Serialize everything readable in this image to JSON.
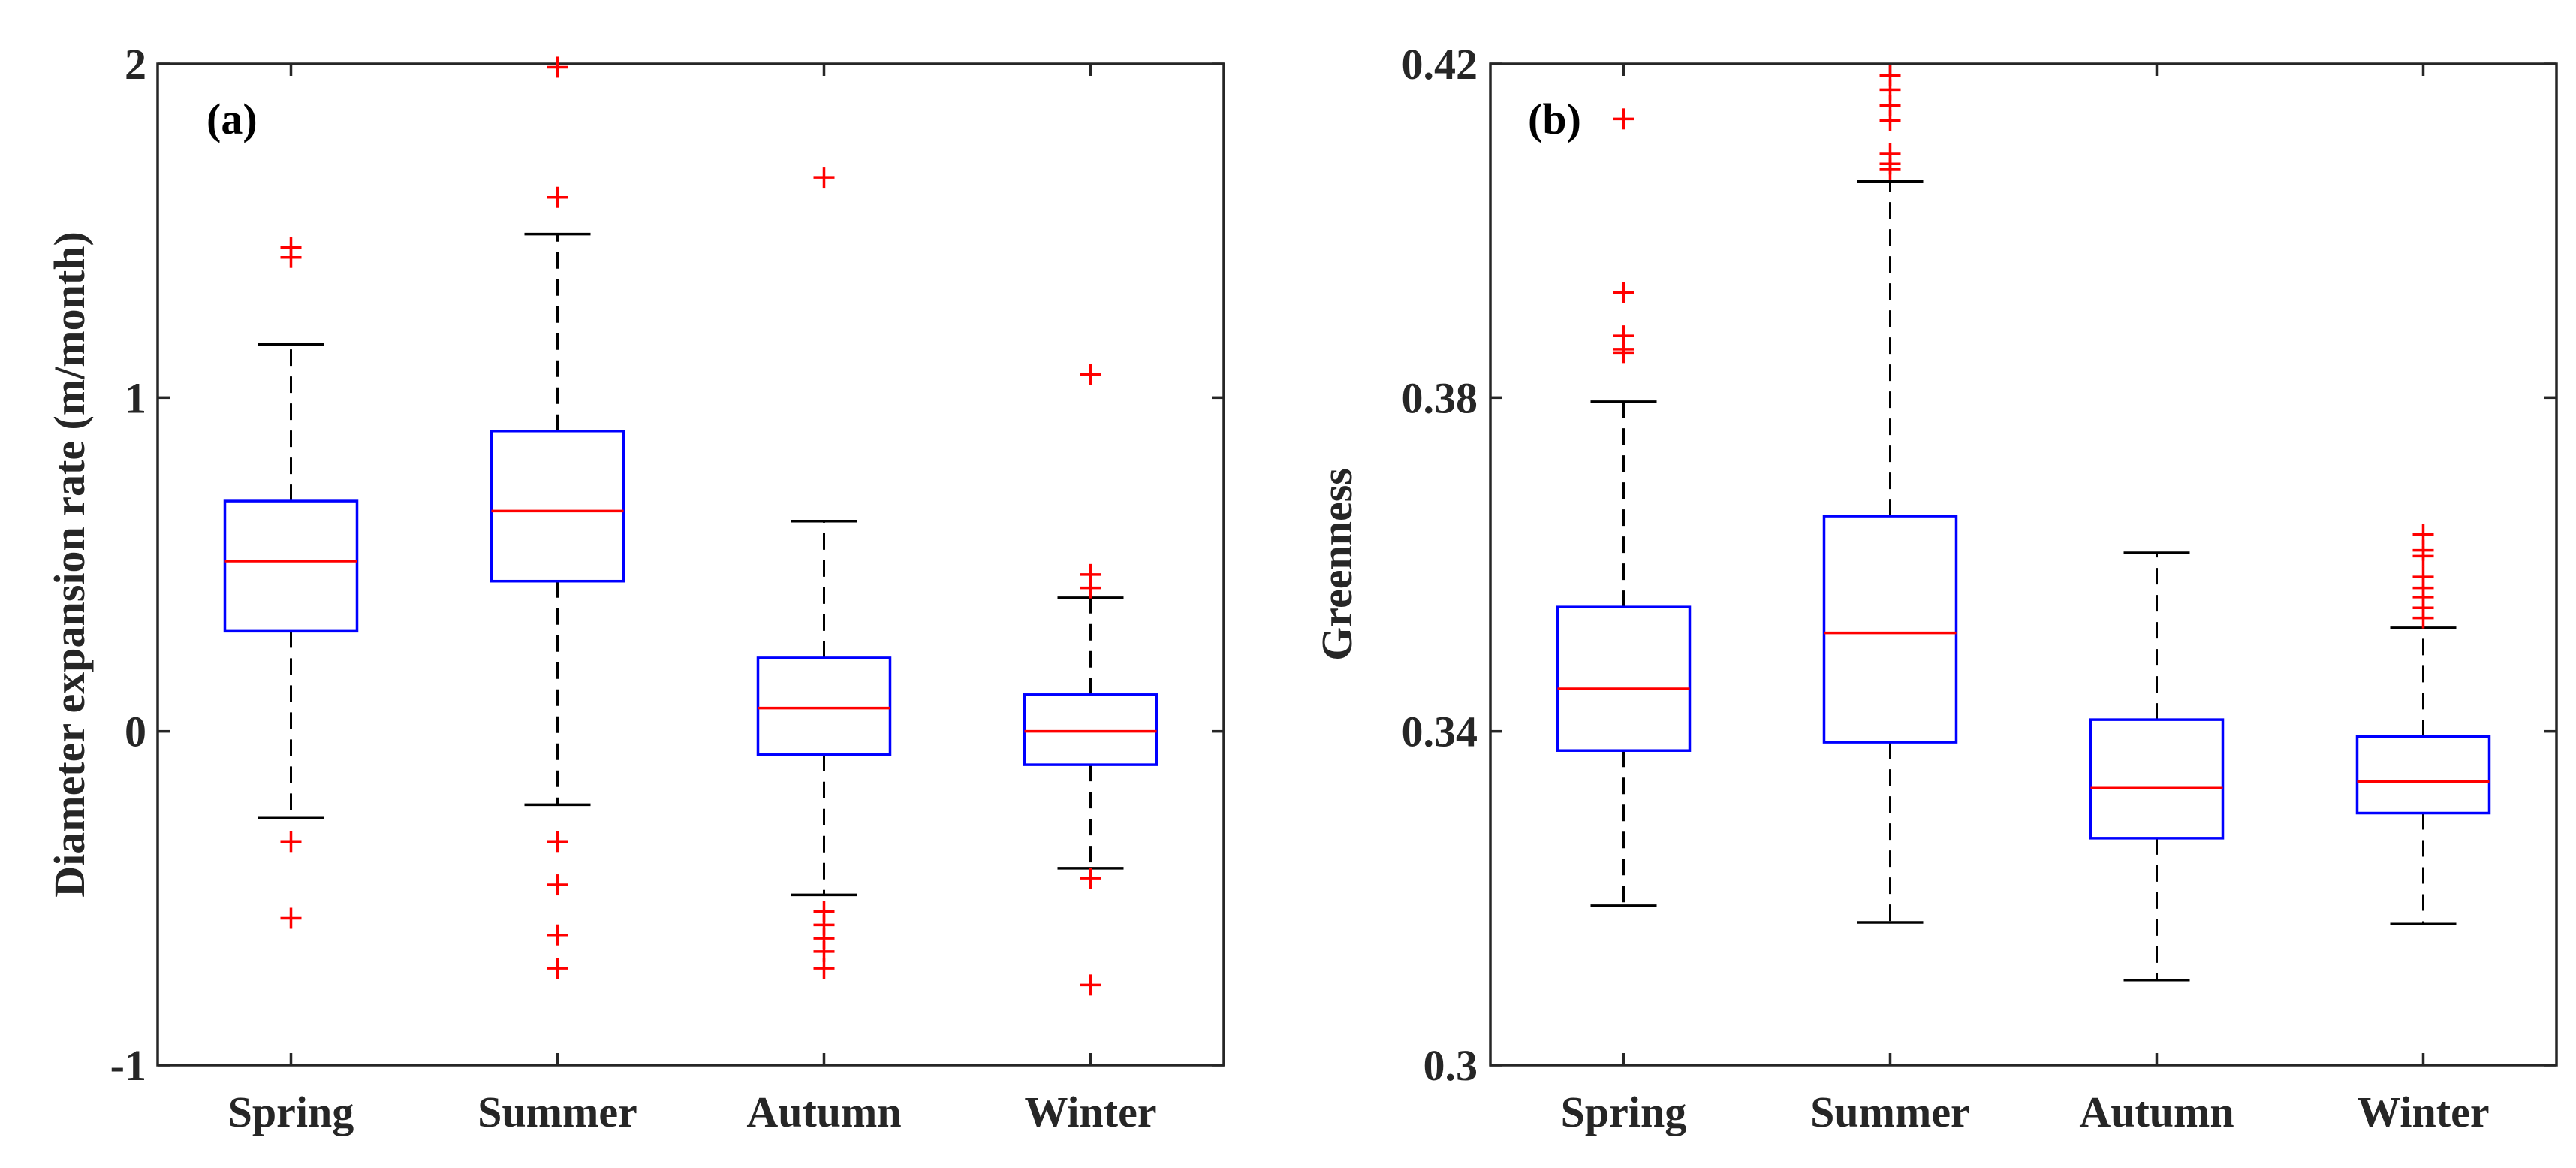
{
  "colors": {
    "box": "#0000ff",
    "median": "#ff0000",
    "whisker": "#000000",
    "outlier": "#ff0000",
    "axis": "#262626"
  },
  "chart_data": [
    {
      "type": "boxplot",
      "panel_label": "(a)",
      "xlabel": "",
      "ylabel": "Diameter expansion rate (m/month)",
      "ylim": [
        -1,
        2
      ],
      "yticks": [
        -1,
        0,
        1,
        2
      ],
      "ytick_labels": [
        "-1",
        "0",
        "1",
        "2"
      ],
      "categories": [
        "Spring",
        "Summer",
        "Autumn",
        "Winter"
      ],
      "boxes": [
        {
          "q1": 0.3,
          "median": 0.51,
          "q3": 0.69,
          "whisker_low": -0.26,
          "whisker_high": 1.16,
          "outliers": [
            1.42,
            1.45,
            -0.33,
            -0.56
          ]
        },
        {
          "q1": 0.45,
          "median": 0.66,
          "q3": 0.9,
          "whisker_low": -0.22,
          "whisker_high": 1.49,
          "outliers": [
            1.99,
            1.6,
            -0.33,
            -0.46,
            -0.61,
            -0.71
          ]
        },
        {
          "q1": -0.07,
          "median": 0.07,
          "q3": 0.22,
          "whisker_low": -0.49,
          "whisker_high": 0.63,
          "outliers": [
            1.66,
            -0.54,
            -0.58,
            -0.62,
            -0.66,
            -0.71
          ]
        },
        {
          "q1": -0.1,
          "median": 0.0,
          "q3": 0.11,
          "whisker_low": -0.41,
          "whisker_high": 0.4,
          "outliers": [
            1.07,
            0.47,
            0.43,
            -0.44,
            -0.76
          ]
        }
      ]
    },
    {
      "type": "boxplot",
      "panel_label": "(b)",
      "xlabel": "",
      "ylabel": "Greenness",
      "ylim": [
        0.3,
        0.42
      ],
      "yticks": [
        0.3,
        0.34,
        0.38,
        0.42
      ],
      "ytick_labels": [
        "0.3",
        "0.34",
        "0.38",
        "0.42"
      ],
      "categories": [
        "Spring",
        "Summer",
        "Autumn",
        "Winter"
      ],
      "boxes": [
        {
          "q1": 0.3377,
          "median": 0.3451,
          "q3": 0.3549,
          "whisker_low": 0.3191,
          "whisker_high": 0.3795,
          "outliers": [
            0.4134,
            0.3926,
            0.3874,
            0.3858,
            0.3854
          ]
        },
        {
          "q1": 0.3387,
          "median": 0.3518,
          "q3": 0.3658,
          "whisker_low": 0.3171,
          "whisker_high": 0.4059,
          "outliers": [
            0.4186,
            0.4169,
            0.415,
            0.4132,
            0.4092,
            0.408,
            0.4074
          ]
        },
        {
          "q1": 0.3272,
          "median": 0.3332,
          "q3": 0.3414,
          "whisker_low": 0.3102,
          "whisker_high": 0.3614,
          "outliers": []
        },
        {
          "q1": 0.3302,
          "median": 0.334,
          "q3": 0.3394,
          "whisker_low": 0.3169,
          "whisker_high": 0.3524,
          "outliers": [
            0.3636,
            0.3617,
            0.361,
            0.3585,
            0.3572,
            0.3561,
            0.3548,
            0.3536
          ]
        }
      ]
    }
  ]
}
